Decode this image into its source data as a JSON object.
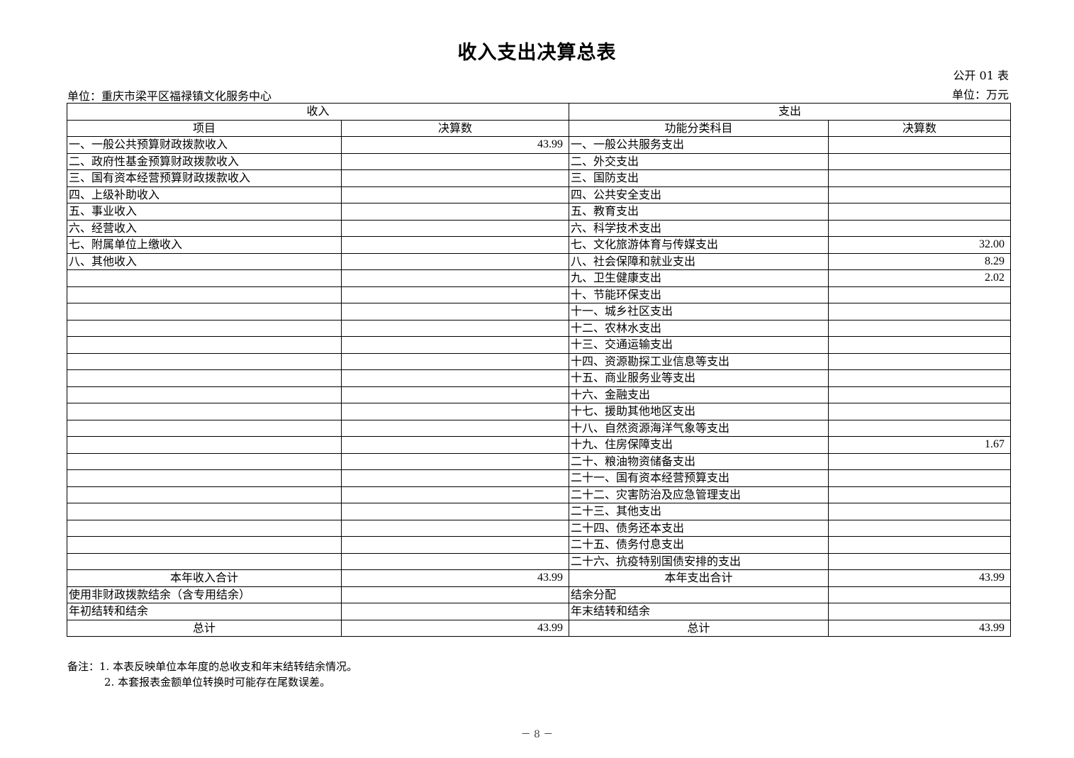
{
  "title": "收入支出决算总表",
  "form_no": "公开 01 表",
  "unit_name": "单位：重庆市梁平区福禄镇文化服务中心",
  "currency_unit": "单位：万元",
  "headers": {
    "income": "收入",
    "expenditure": "支出",
    "income_item": "项目",
    "income_amount": "决算数",
    "exp_item": "功能分类科目",
    "exp_amount": "决算数"
  },
  "income_rows": [
    {
      "label": "一、一般公共预算财政拨款收入",
      "value": "43.99"
    },
    {
      "label": "二、政府性基金预算财政拨款收入",
      "value": ""
    },
    {
      "label": "三、国有资本经营预算财政拨款收入",
      "value": ""
    },
    {
      "label": "四、上级补助收入",
      "value": ""
    },
    {
      "label": "五、事业收入",
      "value": ""
    },
    {
      "label": "六、经营收入",
      "value": ""
    },
    {
      "label": "七、附属单位上缴收入",
      "value": ""
    },
    {
      "label": "八、其他收入",
      "value": ""
    }
  ],
  "expenditure_rows": [
    {
      "label": "一、一般公共服务支出",
      "value": ""
    },
    {
      "label": "二、外交支出",
      "value": ""
    },
    {
      "label": "三、国防支出",
      "value": ""
    },
    {
      "label": "四、公共安全支出",
      "value": ""
    },
    {
      "label": "五、教育支出",
      "value": ""
    },
    {
      "label": "六、科学技术支出",
      "value": ""
    },
    {
      "label": "七、文化旅游体育与传媒支出",
      "value": "32.00"
    },
    {
      "label": "八、社会保障和就业支出",
      "value": "8.29"
    },
    {
      "label": "九、卫生健康支出",
      "value": "2.02"
    },
    {
      "label": "十、节能环保支出",
      "value": ""
    },
    {
      "label": "十一、城乡社区支出",
      "value": ""
    },
    {
      "label": "十二、农林水支出",
      "value": ""
    },
    {
      "label": "十三、交通运输支出",
      "value": ""
    },
    {
      "label": "十四、资源勘探工业信息等支出",
      "value": ""
    },
    {
      "label": "十五、商业服务业等支出",
      "value": ""
    },
    {
      "label": "十六、金融支出",
      "value": ""
    },
    {
      "label": "十七、援助其他地区支出",
      "value": ""
    },
    {
      "label": "十八、自然资源海洋气象等支出",
      "value": ""
    },
    {
      "label": "十九、住房保障支出",
      "value": "1.67"
    },
    {
      "label": "二十、粮油物资储备支出",
      "value": ""
    },
    {
      "label": "二十一、国有资本经营预算支出",
      "value": ""
    },
    {
      "label": "二十二、灾害防治及应急管理支出",
      "value": ""
    },
    {
      "label": "二十三、其他支出",
      "value": ""
    },
    {
      "label": "二十四、债务还本支出",
      "value": ""
    },
    {
      "label": "二十五、债务付息支出",
      "value": ""
    },
    {
      "label": "二十六、抗疫特别国债安排的支出",
      "value": ""
    }
  ],
  "summary_rows": [
    {
      "in_label": "本年收入合计",
      "in_value": "43.99",
      "ex_label": "本年支出合计",
      "ex_value": "43.99",
      "centered": true
    },
    {
      "in_label": "使用非财政拨款结余（含专用结余）",
      "in_value": "",
      "ex_label": "结余分配",
      "ex_value": "",
      "centered": false
    },
    {
      "in_label": "年初结转和结余",
      "in_value": "",
      "ex_label": "年末结转和结余",
      "ex_value": "",
      "centered": false
    },
    {
      "in_label": "总计",
      "in_value": "43.99",
      "ex_label": "总计",
      "ex_value": "43.99",
      "centered": true
    }
  ],
  "notes": [
    "备注：1. 本表反映单位本年度的总收支和年末结转结余情况。",
    "2. 本套报表金额单位转换时可能存在尾数误差。"
  ],
  "page_number": "－ 8 －"
}
